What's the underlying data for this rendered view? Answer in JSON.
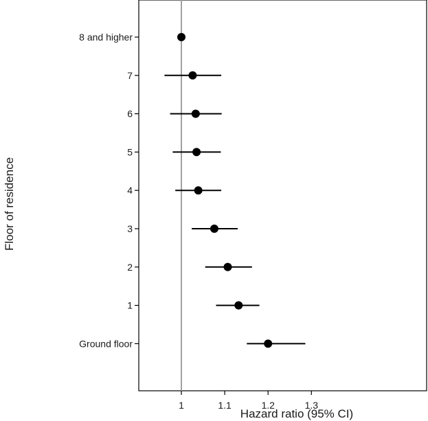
{
  "chart_data": {
    "type": "scatter",
    "subtype": "forest-plot",
    "title": "",
    "xlabel": "Hazard ratio (95% CI)",
    "ylabel": "Floor of residence",
    "xlim": [
      0.95,
      1.3
    ],
    "x_ticks": [
      1,
      1.1,
      1.2,
      1.3
    ],
    "x_tick_labels": [
      "1",
      "1.1",
      "1.2",
      "1.3"
    ],
    "reference_line": 1,
    "reference_line_color": "#a0a0a0",
    "marker_color": "#000000",
    "categories": [
      "8 and higher",
      "7",
      "6",
      "5",
      "4",
      "3",
      "2",
      "1",
      "Ground floor"
    ],
    "estimates": [
      1.0,
      1.026,
      1.033,
      1.035,
      1.039,
      1.076,
      1.107,
      1.132,
      1.2
    ],
    "ci_lower": [
      null,
      0.961,
      0.974,
      0.98,
      0.986,
      1.024,
      1.055,
      1.08,
      1.151
    ],
    "ci_upper": [
      null,
      1.092,
      1.093,
      1.091,
      1.092,
      1.13,
      1.163,
      1.18,
      1.286
    ],
    "grid": false,
    "legend": "none"
  }
}
